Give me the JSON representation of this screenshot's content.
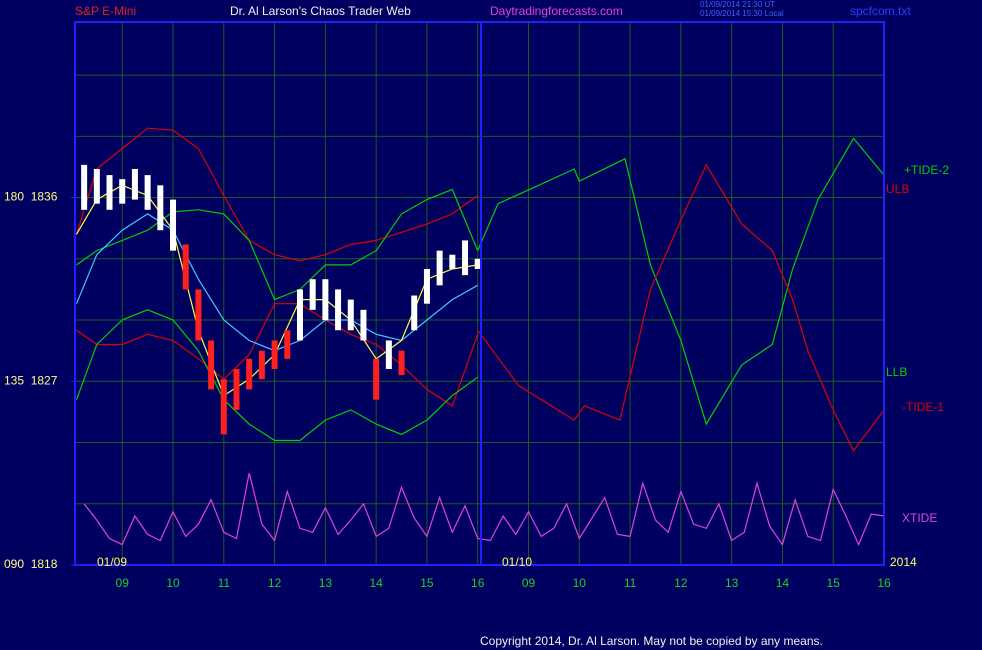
{
  "chart_data": {
    "type": "line",
    "instrument": "S&P E-Mini",
    "title": "Dr. Al Larson's Chaos Trader Web",
    "site": "Daytradingforecasts.com",
    "timestamps": [
      "01/09/2014 21:30 UT",
      "01/09/2014 15:30 Local"
    ],
    "file": "spcfcom.txt",
    "copyright": "Copyright 2014, Dr. Al Larson. May not be copied by any means.",
    "date_labels": [
      "01/09",
      "01/10",
      "2014"
    ],
    "xlim": [
      8.07,
      24
    ],
    "ylim": [
      1818,
      1844.6
    ],
    "xticks": [
      {
        "value": 9,
        "label": "09"
      },
      10,
      11,
      12,
      13,
      14,
      15,
      16,
      {
        "value": 17,
        "label": "09"
      },
      {
        "value": 18,
        "label": "10"
      },
      {
        "value": 19,
        "label": "11"
      },
      {
        "value": 20,
        "label": "12"
      },
      {
        "value": 21,
        "label": "13"
      },
      {
        "value": 22,
        "label": "14"
      },
      {
        "value": 23,
        "label": "15"
      },
      {
        "value": 24,
        "label": "16"
      }
    ],
    "yticks": [
      {
        "value": 1836,
        "label": "180  1836"
      },
      {
        "value": 1827,
        "label": "135  1827"
      },
      {
        "value": 1818,
        "label": "090  1818"
      }
    ],
    "ygrid": [
      1821,
      1824,
      1827,
      1830,
      1833,
      1836,
      1839,
      1842
    ],
    "grid": true,
    "series": [
      {
        "name": "ULB",
        "color": "#e00000",
        "x": [
          8.1,
          8.5,
          9,
          9.5,
          10,
          10.5,
          11,
          11.5,
          12,
          12.5,
          13,
          13.5,
          14,
          14.5,
          15,
          15.5,
          16
        ],
        "values": [
          1834.2,
          1837.4,
          1838.4,
          1839.4,
          1839.3,
          1838.4,
          1836.1,
          1833.9,
          1833.2,
          1832.9,
          1833.2,
          1833.7,
          1833.9,
          1834.3,
          1834.7,
          1835.2,
          1836.1
        ]
      },
      {
        "color": "#e00000",
        "x": [
          8.1,
          8.5,
          9,
          9.5,
          10,
          10.5,
          11,
          11.5,
          12,
          12.5,
          13,
          13.5,
          14,
          14.5,
          15,
          15.5,
          16
        ],
        "values": [
          1829.5,
          1828.8,
          1828.8,
          1829.3,
          1829.0,
          1828.1,
          1827.1,
          1828.3,
          1830.8,
          1830.8,
          1830.0,
          1829.3,
          1828.8,
          1827.8,
          1826.6,
          1825.8,
          1829.3
        ]
      },
      {
        "color": "#00d000",
        "x": [
          8.1,
          8.5,
          9,
          9.5,
          10,
          10.5,
          11,
          11.5,
          12,
          12.5,
          13,
          13.5,
          14,
          14.5,
          15,
          15.5,
          16
        ],
        "values": [
          1832.7,
          1833.4,
          1833.9,
          1834.4,
          1835.3,
          1835.4,
          1835.2,
          1833.9,
          1831.0,
          1831.5,
          1832.7,
          1832.7,
          1833.4,
          1835.2,
          1835.9,
          1836.4,
          1833.4
        ]
      },
      {
        "name": "LLB",
        "color": "#00d000",
        "x": [
          8.1,
          8.5,
          9,
          9.5,
          10,
          10.5,
          11,
          11.5,
          12,
          12.5,
          13,
          13.5,
          14,
          14.5,
          15,
          15.5,
          16
        ],
        "values": [
          1826.1,
          1828.8,
          1830.0,
          1830.5,
          1830.0,
          1828.5,
          1826.1,
          1824.9,
          1824.1,
          1824.1,
          1825.1,
          1825.6,
          1824.9,
          1824.4,
          1825.1,
          1826.3,
          1827.2
        ]
      },
      {
        "color": "#40c8ff",
        "x": [
          8.1,
          8.5,
          9,
          9.5,
          10,
          10.5,
          11,
          11.5,
          12,
          12.5,
          13,
          13.5,
          14,
          14.5,
          15,
          15.5,
          16
        ],
        "values": [
          1830.8,
          1833.2,
          1834.4,
          1835.2,
          1834.4,
          1832.0,
          1830.0,
          1829.0,
          1828.5,
          1829.0,
          1830.0,
          1830.0,
          1829.3,
          1829.0,
          1830.0,
          1831.0,
          1831.7
        ]
      },
      {
        "color": "#ffff40",
        "x": [
          8.1,
          8.5,
          9,
          9.5,
          10,
          10.5,
          11,
          11.5,
          12,
          12.5,
          13,
          13.5,
          14,
          14.5,
          15,
          15.5,
          16
        ],
        "values": [
          1834.2,
          1835.9,
          1836.6,
          1836.1,
          1834.4,
          1829.5,
          1826.3,
          1827.1,
          1828.3,
          1831.0,
          1831.0,
          1830.0,
          1828.1,
          1829.0,
          1832.0,
          1832.5,
          1832.7
        ]
      },
      {
        "name": "+TIDE-2",
        "color": "#00d000",
        "x": [
          16,
          16.4,
          17.2,
          17.9,
          18,
          18.9,
          19.4,
          20,
          20.5,
          21.2,
          21.8,
          22.2,
          22.7,
          23.4,
          24
        ],
        "values": [
          1833.4,
          1835.7,
          1836.6,
          1837.4,
          1836.8,
          1837.9,
          1832.7,
          1829.0,
          1824.9,
          1827.8,
          1828.8,
          1832.5,
          1835.9,
          1838.9,
          1837.1
        ]
      },
      {
        "name": "-TIDE-1",
        "color": "#e00000",
        "x": [
          16,
          16.8,
          17.9,
          18.1,
          18.8,
          19.4,
          20,
          20.5,
          21.2,
          21.8,
          22.2,
          22.5,
          23,
          23.4,
          24
        ],
        "values": [
          1829.5,
          1826.8,
          1825.1,
          1825.8,
          1825.1,
          1831.5,
          1834.9,
          1837.6,
          1834.7,
          1833.4,
          1831.0,
          1828.5,
          1825.6,
          1823.6,
          1825.6
        ]
      },
      {
        "name": "XTIDE",
        "color": "#e040e0",
        "x": [
          8.25,
          8.5,
          8.75,
          9,
          9.25,
          9.5,
          9.75,
          10,
          10.25,
          10.5,
          10.75,
          11,
          11.25,
          11.5,
          11.75,
          12,
          12.25,
          12.5,
          12.75,
          13,
          13.25,
          13.5,
          13.75,
          14,
          14.25,
          14.5,
          14.75,
          15,
          15.25,
          15.5,
          15.75,
          16,
          16.25,
          16.5,
          16.75,
          17,
          17.25,
          17.5,
          17.75,
          18,
          18.25,
          18.5,
          18.75,
          19,
          19.25,
          19.5,
          19.75,
          20,
          20.25,
          20.5,
          20.75,
          21,
          21.25,
          21.5,
          21.75,
          22,
          22.25,
          22.5,
          22.75,
          23,
          23.25,
          23.5,
          23.75,
          24
        ],
        "values": [
          1821.0,
          1820.2,
          1819.3,
          1819.0,
          1820.4,
          1819.5,
          1819.2,
          1820.6,
          1819.4,
          1820.0,
          1821.2,
          1819.6,
          1819.3,
          1822.5,
          1820.0,
          1819.2,
          1821.6,
          1819.8,
          1819.6,
          1820.8,
          1819.5,
          1820.2,
          1821.0,
          1819.4,
          1819.8,
          1821.8,
          1820.3,
          1819.4,
          1821.3,
          1819.6,
          1820.9,
          1819.3,
          1819.2,
          1820.4,
          1819.5,
          1820.6,
          1819.4,
          1819.8,
          1821.0,
          1819.3,
          1820.3,
          1821.3,
          1819.5,
          1819.4,
          1822.0,
          1820.2,
          1819.6,
          1821.6,
          1820.0,
          1819.8,
          1821.0,
          1819.2,
          1819.6,
          1822.0,
          1819.9,
          1819.0,
          1821.2,
          1819.4,
          1819.2,
          1821.7,
          1820.4,
          1819.0,
          1820.5,
          1820.4
        ]
      }
    ],
    "bars": {
      "x": [
        8.25,
        8.5,
        8.75,
        9,
        9.25,
        9.5,
        9.75,
        10,
        10.25,
        10.5,
        10.75,
        11,
        11.25,
        11.5,
        11.75,
        12,
        12.25,
        12.5,
        12.75,
        13,
        13.25,
        13.5,
        13.75,
        14,
        14.25,
        14.5,
        14.75,
        15,
        15.25,
        15.5,
        15.75,
        16
      ],
      "high": [
        1837.6,
        1837.4,
        1837.1,
        1836.9,
        1837.4,
        1837.1,
        1836.6,
        1835.9,
        1833.7,
        1831.5,
        1829.0,
        1827.1,
        1827.6,
        1828.1,
        1828.5,
        1829.0,
        1829.5,
        1831.5,
        1832.0,
        1832.0,
        1831.5,
        1831.0,
        1830.5,
        1828.1,
        1829.0,
        1828.5,
        1831.2,
        1832.5,
        1833.4,
        1833.2,
        1833.9,
        1833.0
      ],
      "low": [
        1835.4,
        1835.7,
        1835.4,
        1835.7,
        1835.9,
        1835.4,
        1834.4,
        1833.4,
        1831.5,
        1829.0,
        1826.6,
        1824.4,
        1825.6,
        1826.6,
        1827.1,
        1827.6,
        1828.1,
        1829.0,
        1830.5,
        1830.0,
        1829.5,
        1829.5,
        1829.0,
        1826.1,
        1827.6,
        1827.3,
        1829.5,
        1830.8,
        1831.7,
        1832.5,
        1832.2,
        1832.5
      ],
      "colors": [
        "#ffffff",
        "#ffffff",
        "#ffffff",
        "#ffffff",
        "#ffffff",
        "#ffffff",
        "#ffffff",
        "#ffffff",
        "#ff2020",
        "#ff2020",
        "#ff2020",
        "#ff2020",
        "#ff2020",
        "#ff2020",
        "#ff2020",
        "#ff2020",
        "#ff2020",
        "#ffffff",
        "#ffffff",
        "#ffffff",
        "#ffffff",
        "#ffffff",
        "#ffffff",
        "#ff2020",
        "#ffffff",
        "#ff2020",
        "#ffffff",
        "#ffffff",
        "#ffffff",
        "#ffffff",
        "#ffffff",
        "#ffffff"
      ]
    }
  }
}
